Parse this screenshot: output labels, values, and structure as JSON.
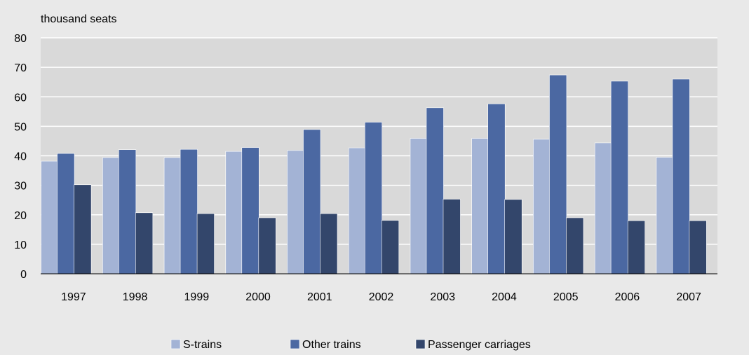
{
  "chart_data": {
    "type": "bar",
    "ylabel": "thousand seats",
    "ylim": [
      0,
      80
    ],
    "yticks": [
      0,
      10,
      20,
      30,
      40,
      50,
      60,
      70,
      80
    ],
    "grid": true,
    "legend_position": "bottom",
    "categories": [
      "1997",
      "1998",
      "1999",
      "2000",
      "2001",
      "2002",
      "2003",
      "2004",
      "2005",
      "2006",
      "2007"
    ],
    "series": [
      {
        "name": "S-trains",
        "color": "#a3b3d5",
        "values": [
          38.2,
          39.4,
          39.4,
          41.5,
          41.8,
          42.7,
          45.9,
          45.9,
          45.6,
          44.4,
          39.5
        ]
      },
      {
        "name": "Other trains",
        "color": "#4b68a2",
        "values": [
          40.8,
          42.1,
          42.2,
          42.8,
          48.9,
          51.4,
          56.3,
          57.6,
          67.4,
          65.3,
          66.0
        ]
      },
      {
        "name": "Passenger carriages",
        "color": "#33466b",
        "values": [
          30.2,
          20.7,
          20.4,
          19.0,
          20.4,
          18.1,
          25.3,
          25.2,
          19.0,
          18.0,
          18.0
        ]
      }
    ]
  }
}
